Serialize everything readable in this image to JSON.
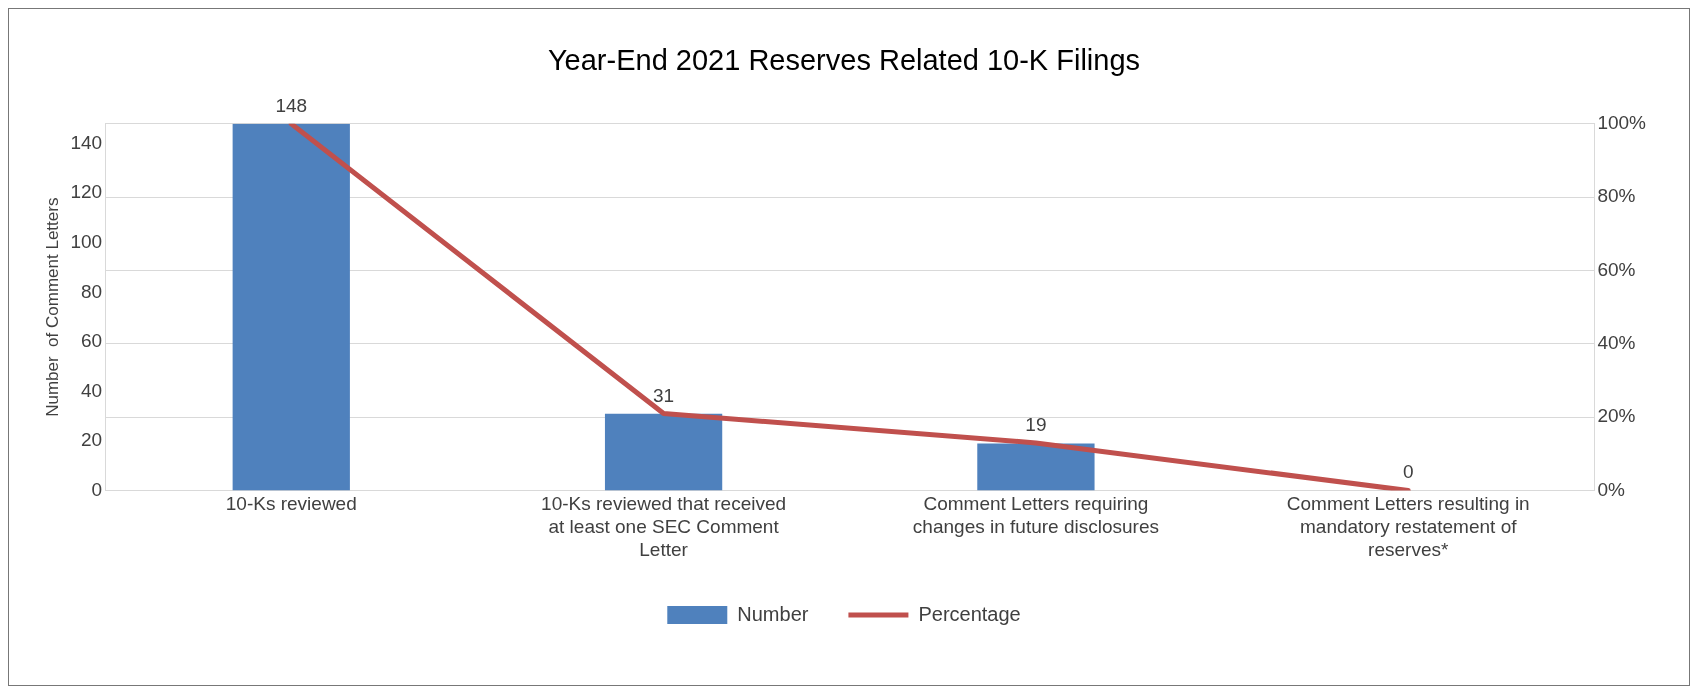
{
  "chart_data": {
    "type": "bar",
    "title": "Year-End 2021 Reserves Related 10-K Filings",
    "ylabel": "Number  of Comment Letters",
    "categories": [
      [
        "10-Ks reviewed"
      ],
      [
        "10-Ks reviewed that received",
        "at least one SEC Comment",
        "Letter"
      ],
      [
        "Comment Letters requiring",
        "changes in future disclosures"
      ],
      [
        "Comment Letters resulting in",
        "mandatory restatement of",
        "reserves*"
      ]
    ],
    "series": [
      {
        "name": "Number",
        "color": "#4f81bd",
        "values": [
          148,
          31,
          19,
          0
        ],
        "data_labels": true
      },
      {
        "name": "Percentage",
        "type": "line",
        "axis": "y2",
        "color": "#c0504d",
        "values": [
          100,
          21,
          13,
          0
        ]
      }
    ],
    "ylim": [
      0,
      148
    ],
    "yticks": [
      0,
      20,
      40,
      60,
      80,
      100,
      120,
      140
    ],
    "y2lim": [
      0,
      100
    ],
    "y2ticks": [
      {
        "value": 0,
        "label": "0%"
      },
      {
        "value": 20,
        "label": "20%"
      },
      {
        "value": 40,
        "label": "40%"
      },
      {
        "value": 60,
        "label": "60%"
      },
      {
        "value": 80,
        "label": "80%"
      },
      {
        "value": 100,
        "label": "100%"
      }
    ],
    "grid": "y2",
    "legend": "bottom",
    "marker": "none"
  }
}
